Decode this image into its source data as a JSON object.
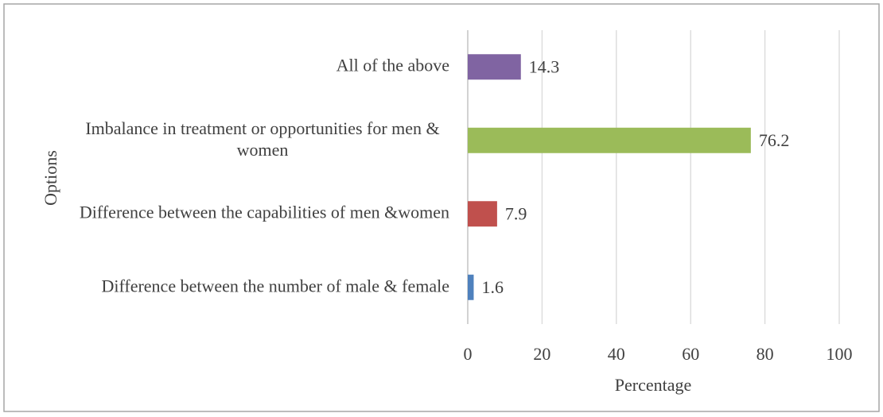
{
  "chart_data": {
    "type": "bar",
    "orientation": "horizontal",
    "x_label": "Percentage",
    "y_label": "Options",
    "categories": [
      "Difference between the number of male & female",
      "Difference between the capabilities of men &women",
      "Imbalance in treatment or opportunities for men & women",
      "All of the above"
    ],
    "values": [
      1.6,
      7.9,
      76.2,
      14.3
    ],
    "colors": [
      "#4f81bd",
      "#c0504d",
      "#9bbb59",
      "#8064a2"
    ],
    "xlim": [
      0,
      100
    ],
    "xticks": [
      0,
      20,
      40,
      60,
      80,
      100
    ],
    "grid": true
  }
}
